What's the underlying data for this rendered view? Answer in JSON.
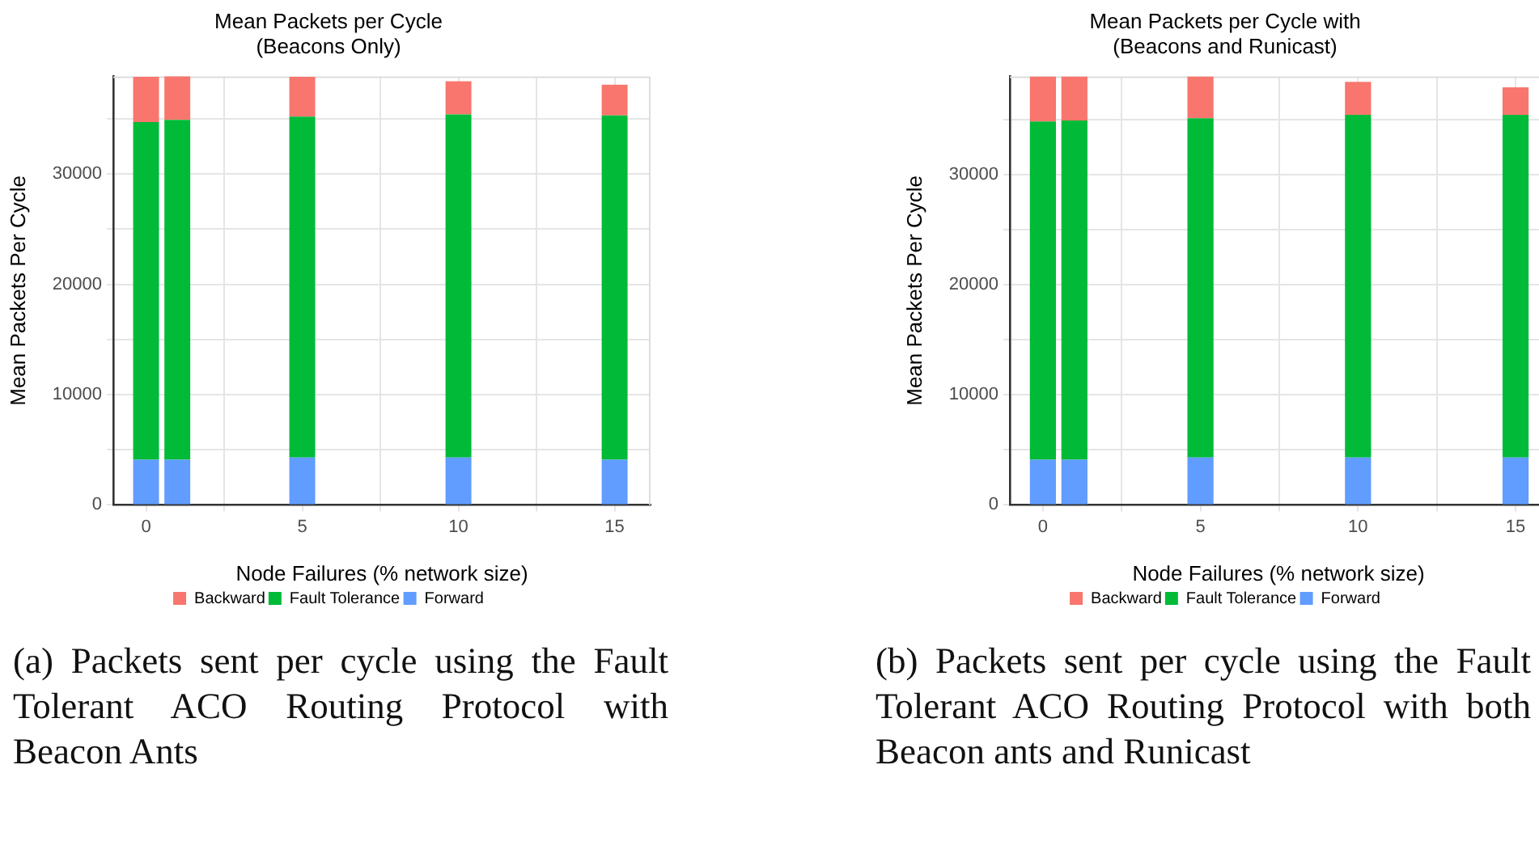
{
  "chart_data": [
    {
      "type": "bar",
      "title": "Mean Packets per Cycle\n(Beacons Only)",
      "xlabel": "Node Failures (% network size)",
      "ylabel": "Mean Packets Per Cycle",
      "stacked": true,
      "x": [
        0,
        1,
        5,
        10,
        15
      ],
      "series": [
        {
          "name": "Forward",
          "color": "#619cff",
          "values": [
            4100,
            4100,
            4300,
            4300,
            4100
          ]
        },
        {
          "name": "Fault Tolerance",
          "color": "#00ba38",
          "values": [
            30600,
            30800,
            30900,
            31100,
            31200
          ]
        },
        {
          "name": "Backward",
          "color": "#f8766d",
          "values": [
            4100,
            4000,
            3600,
            3000,
            2800
          ]
        }
      ],
      "xlim": [
        -1.05,
        16.15
      ],
      "xticks": [
        0,
        {
          "value": 2.5,
          "label": null
        },
        5,
        {
          "value": 7.5,
          "label": null
        },
        10,
        {
          "value": 12.5,
          "label": null
        },
        15
      ],
      "ylim": [
        0,
        38850
      ],
      "yticks": [
        0,
        {
          "value": 5000,
          "label": null
        },
        10000,
        {
          "value": 15000,
          "label": null
        },
        20000,
        {
          "value": 25000,
          "label": null
        },
        30000,
        {
          "value": 35000,
          "label": null
        }
      ],
      "grid": true,
      "legend": "bottom",
      "annotations": [
        "(a) Packets sent per cycle using the Fault Tolerant ACO Routing Protocol with Beacon Ants"
      ]
    },
    {
      "type": "bar",
      "title": "Mean Packets per Cycle with\n(Beacons and Runicast)",
      "xlabel": "Node Failures (% network size)",
      "ylabel": "Mean Packets Per Cycle",
      "stacked": true,
      "x": [
        0,
        1,
        5,
        10,
        15
      ],
      "series": [
        {
          "name": "Forward",
          "color": "#619cff",
          "values": [
            4100,
            4100,
            4300,
            4300,
            4300
          ]
        },
        {
          "name": "Fault Tolerance",
          "color": "#00ba38",
          "values": [
            30700,
            30800,
            30800,
            31100,
            31100
          ]
        },
        {
          "name": "Backward",
          "color": "#f8766d",
          "values": [
            4100,
            4000,
            3800,
            3000,
            2500
          ]
        }
      ],
      "xlim": [
        -1.05,
        16.0
      ],
      "xticks": [
        0,
        {
          "value": 2.5,
          "label": null
        },
        5,
        {
          "value": 7.5,
          "label": null
        },
        10,
        {
          "value": 12.5,
          "label": null
        },
        15
      ],
      "ylim": [
        0,
        38900
      ],
      "yticks": [
        0,
        {
          "value": 5000,
          "label": null
        },
        10000,
        {
          "value": 15000,
          "label": null
        },
        20000,
        {
          "value": 25000,
          "label": null
        },
        30000,
        {
          "value": 35000,
          "label": null
        }
      ],
      "grid": true,
      "legend": "bottom",
      "annotations": [
        "(b) Packets sent per cycle using the Fault Tolerant ACO Routing Protocol with both Beacon ants and Runicast"
      ]
    }
  ]
}
